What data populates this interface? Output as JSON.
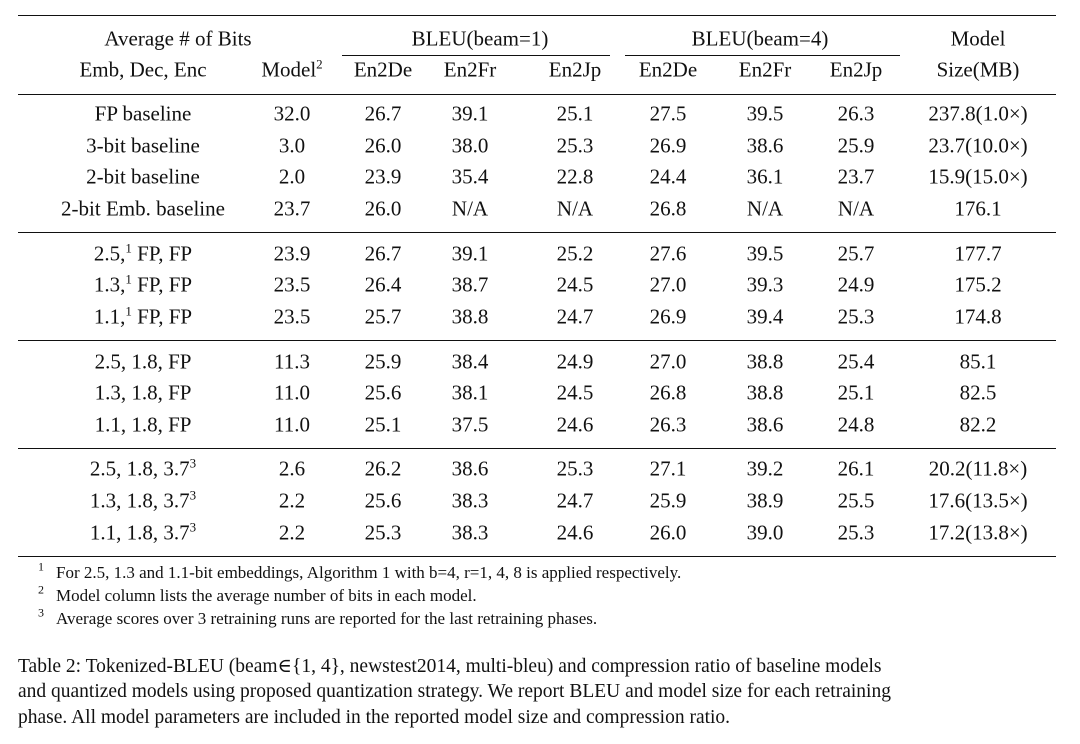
{
  "header": {
    "groups": [
      "Average # of Bits",
      "BLEU(beam=1)",
      "BLEU(beam=4)",
      "Model"
    ],
    "columns": [
      "Emb, Dec, Enc",
      {
        "text": "Model",
        "sup": "2"
      },
      "En2De",
      "En2Fr",
      "En2Jp",
      "En2De",
      "En2Fr",
      "En2Jp",
      "Size(MB)"
    ]
  },
  "table": {
    "groups": [
      {
        "rows": [
          [
            "FP baseline",
            "32.0",
            "26.7",
            "39.1",
            "25.1",
            "27.5",
            "39.5",
            "26.3",
            "237.8(1.0×)"
          ],
          [
            "3-bit baseline",
            "3.0",
            "26.0",
            "38.0",
            "25.3",
            "26.9",
            "38.6",
            "25.9",
            "23.7(10.0×)"
          ],
          [
            "2-bit baseline",
            "2.0",
            "23.9",
            "35.4",
            "22.8",
            "24.4",
            "36.1",
            "23.7",
            "15.9(15.0×)"
          ],
          [
            "2-bit Emb. baseline",
            "23.7",
            "26.0",
            "N/A",
            "N/A",
            "26.8",
            "N/A",
            "N/A",
            "176.1"
          ]
        ]
      },
      {
        "rows": [
          [
            {
              "text": "2.5,",
              "sup": "1",
              "after": " FP, FP"
            },
            "23.9",
            "26.7",
            "39.1",
            "25.2",
            "27.6",
            "39.5",
            "25.7",
            "177.7"
          ],
          [
            {
              "text": "1.3,",
              "sup": "1",
              "after": " FP, FP"
            },
            "23.5",
            "26.4",
            "38.7",
            "24.5",
            "27.0",
            "39.3",
            "24.9",
            "175.2"
          ],
          [
            {
              "text": "1.1,",
              "sup": "1",
              "after": " FP, FP"
            },
            "23.5",
            "25.7",
            "38.8",
            "24.7",
            "26.9",
            "39.4",
            "25.3",
            "174.8"
          ]
        ]
      },
      {
        "rows": [
          [
            "2.5, 1.8, FP",
            "11.3",
            "25.9",
            "38.4",
            "24.9",
            "27.0",
            "38.8",
            "25.4",
            "85.1"
          ],
          [
            "1.3, 1.8, FP",
            "11.0",
            "25.6",
            "38.1",
            "24.5",
            "26.8",
            "38.8",
            "25.1",
            "82.5"
          ],
          [
            "1.1, 1.8, FP",
            "11.0",
            "25.1",
            "37.5",
            "24.6",
            "26.3",
            "38.6",
            "24.8",
            "82.2"
          ]
        ]
      },
      {
        "rows": [
          [
            {
              "text": "2.5, 1.8, 3.7",
              "sup": "3"
            },
            "2.6",
            "26.2",
            "38.6",
            "25.3",
            "27.1",
            "39.2",
            "26.1",
            "20.2(11.8×)"
          ],
          [
            {
              "text": "1.3, 1.8, 3.7",
              "sup": "3"
            },
            "2.2",
            "25.6",
            "38.3",
            "24.7",
            "25.9",
            "38.9",
            "25.5",
            "17.6(13.5×)"
          ],
          [
            {
              "text": "1.1, 1.8, 3.7",
              "sup": "3"
            },
            "2.2",
            "25.3",
            "38.3",
            "24.6",
            "26.0",
            "39.0",
            "25.3",
            "17.2(13.8×)"
          ]
        ]
      }
    ]
  },
  "footnotes": [
    {
      "mark": "1",
      "text": "For 2.5, 1.3 and 1.1-bit embeddings, Algorithm 1 with b=4, r=1, 4, 8 is applied respectively."
    },
    {
      "mark": "2",
      "text": "Model column lists the average number of bits in each model."
    },
    {
      "mark": "3",
      "text": "Average scores over 3 retraining runs are reported for the last retraining phases."
    }
  ],
  "caption": {
    "lines": [
      "Table 2: Tokenized-BLEU (beam∈{1, 4}, newstest2014, multi-bleu) and compression ratio of baseline models",
      "and quantized models using proposed quantization strategy. We report BLEU and model size for each retraining",
      "phase. All model parameters are included in the reported model size and compression ratio."
    ]
  }
}
